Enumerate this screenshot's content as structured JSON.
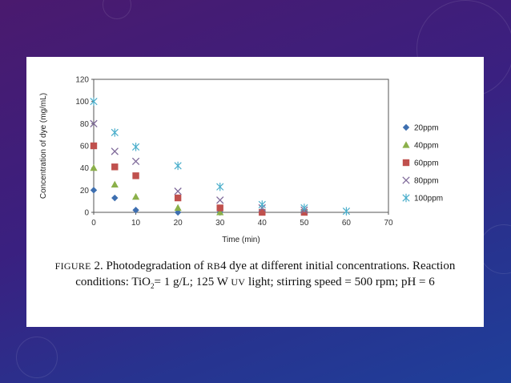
{
  "chart_data": {
    "type": "scatter",
    "xlabel": "Time (min)",
    "ylabel": "Concentration of dye (mg/mL)",
    "xlim": [
      0,
      70
    ],
    "ylim": [
      0,
      120
    ],
    "x_ticks": [
      "0",
      "10",
      "20",
      "30",
      "40",
      "50",
      "60",
      "70"
    ],
    "y_ticks": [
      "0",
      "20",
      "40",
      "60",
      "80",
      "100",
      "120"
    ],
    "grid": false,
    "legend_position": "right",
    "series": [
      {
        "name": "20ppm",
        "marker": "diamond",
        "color": "#3e6fb0",
        "points": [
          [
            0,
            20
          ],
          [
            5,
            13
          ],
          [
            10,
            2
          ],
          [
            20,
            0
          ],
          [
            30,
            0
          ]
        ]
      },
      {
        "name": "40ppm",
        "marker": "triangle",
        "color": "#8bb04a",
        "points": [
          [
            0,
            40
          ],
          [
            5,
            25
          ],
          [
            10,
            14
          ],
          [
            20,
            4
          ],
          [
            30,
            0
          ]
        ]
      },
      {
        "name": "60ppm",
        "marker": "square",
        "color": "#c0504d",
        "points": [
          [
            0,
            60
          ],
          [
            5,
            41
          ],
          [
            10,
            33
          ],
          [
            20,
            13
          ],
          [
            30,
            4
          ],
          [
            40,
            0
          ],
          [
            50,
            0
          ]
        ]
      },
      {
        "name": "80ppm",
        "marker": "x",
        "color": "#7f6a9a",
        "points": [
          [
            0,
            80
          ],
          [
            5,
            55
          ],
          [
            10,
            46
          ],
          [
            20,
            19
          ],
          [
            30,
            11
          ],
          [
            40,
            4
          ],
          [
            50,
            2
          ]
        ]
      },
      {
        "name": "100ppm",
        "marker": "asterisk",
        "color": "#4aaecb",
        "points": [
          [
            0,
            100
          ],
          [
            5,
            72
          ],
          [
            10,
            59
          ],
          [
            20,
            42
          ],
          [
            30,
            23
          ],
          [
            40,
            7
          ],
          [
            50,
            4
          ],
          [
            60,
            1
          ]
        ]
      }
    ]
  },
  "caption": {
    "label": "FIGURE",
    "number_text": " 2. Photodegradation of ",
    "rb": "RB",
    "rest1": "4 dye at different initial concentrations. Reaction",
    "line2_a": "conditions: TiO",
    "sub2": "2",
    "line2_b": "= 1 g/L; 125 W ",
    "uv": "UV",
    "line2_c": " light; stirring speed = 500 rpm; pH = 6"
  }
}
